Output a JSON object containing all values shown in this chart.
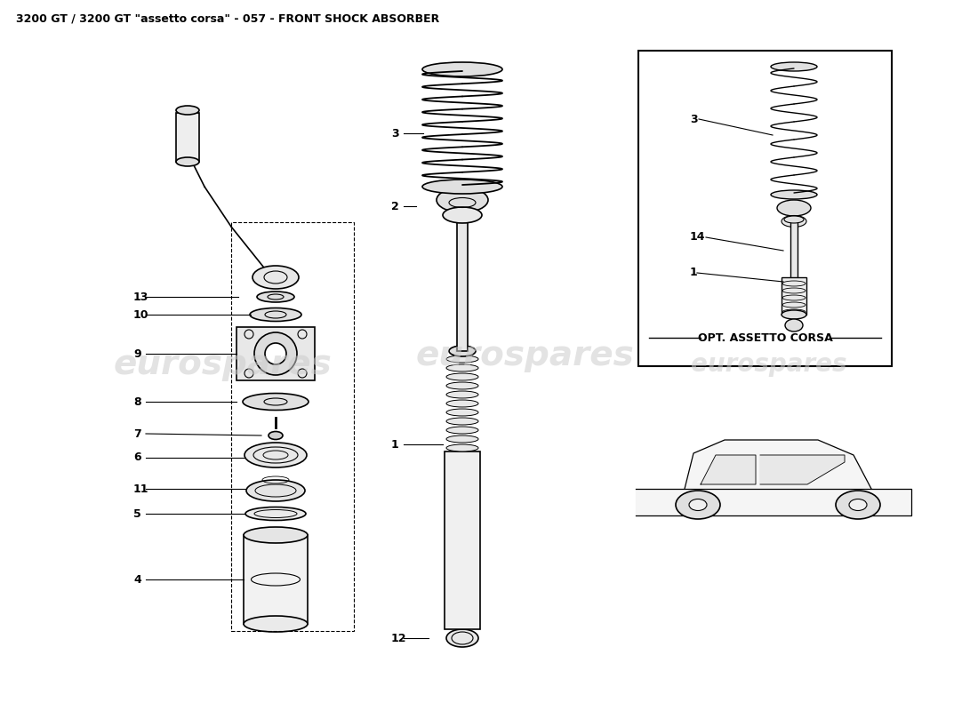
{
  "title": "3200 GT / 3200 GT \"assetto corsa\" - 057 - FRONT SHOCK ABSORBER",
  "title_fontsize": 9,
  "bg_color": "#ffffff",
  "line_color": "#000000",
  "watermark_text": "eurospares",
  "watermark_color": "#cccccc",
  "opt_label": "OPT. ASSETTO CORSA"
}
